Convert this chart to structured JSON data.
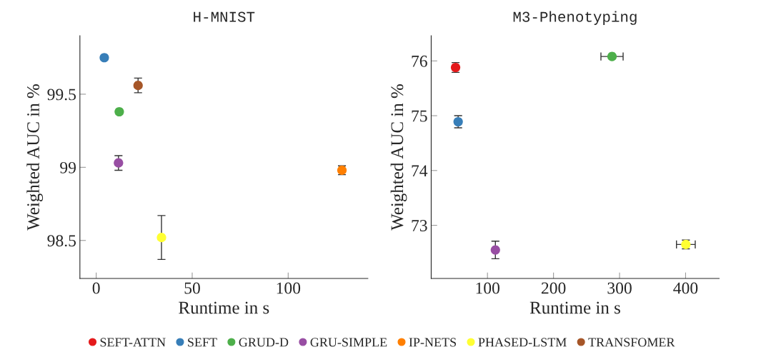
{
  "chart_data": [
    {
      "type": "scatter",
      "title": "H-MNIST",
      "xlabel": "Runtime in s",
      "ylabel": "Weighted AUC in %",
      "xlim": [
        -8.5,
        141.5
      ],
      "xticks": [
        0,
        50,
        100
      ],
      "ylim": [
        98.24,
        99.9
      ],
      "yticks": [
        98.5,
        99,
        99.5
      ],
      "marker": "circle",
      "grid": false,
      "legend": "bottom",
      "series": [
        {
          "name": "SEFT-ATTN",
          "color": "#e41a1c",
          "x": [
            null
          ],
          "values": [
            null
          ]
        },
        {
          "name": "SEFT",
          "color": "#377eb8",
          "x": [
            4.2
          ],
          "values": [
            99.75
          ]
        },
        {
          "name": "GRUD-D",
          "color": "#4daf4a",
          "x": [
            12.0
          ],
          "values": [
            99.38
          ]
        },
        {
          "name": "GRU-SIMPLE",
          "color": "#984ea3",
          "x": [
            11.6
          ],
          "values": [
            99.03
          ],
          "errors": [
            0.05
          ]
        },
        {
          "name": "IP-NETS",
          "color": "#ff7f00",
          "x": [
            128.0
          ],
          "values": [
            98.98
          ],
          "errors": [
            0.03
          ]
        },
        {
          "name": "PHASED-LSTM",
          "color": "#ffff33",
          "x": [
            34.0
          ],
          "values": [
            98.52
          ],
          "errors": [
            0.15
          ]
        },
        {
          "name": "TRANSFOMER",
          "color": "#a65628",
          "x": [
            21.8
          ],
          "values": [
            99.56
          ],
          "errors": [
            0.05
          ]
        }
      ]
    },
    {
      "type": "scatter",
      "title": "M3-Phenotyping",
      "xlabel": "Runtime in s",
      "ylabel": "Weighted AUC in %",
      "xlim": [
        14.8,
        450.8
      ],
      "xticks": [
        100,
        200,
        300,
        400
      ],
      "ylim": [
        72.03,
        76.46
      ],
      "yticks": [
        73,
        74,
        75,
        76
      ],
      "marker": "circle",
      "grid": false,
      "series": [
        {
          "color": "#e41a1c",
          "x": [
            51.7
          ],
          "values": [
            75.88
          ],
          "errors": [
            0.09
          ]
        },
        {
          "color": "#377eb8",
          "x": [
            55.6
          ],
          "values": [
            74.89
          ],
          "errors": [
            0.11
          ]
        },
        {
          "color": "#4daf4a",
          "x": [
            288.6
          ],
          "values": [
            76.08
          ],
          "xerrors": [
            16.8
          ]
        },
        {
          "color": "#984ea3",
          "x": [
            112.0
          ],
          "values": [
            72.55
          ],
          "errors": [
            0.16
          ]
        },
        {
          "color": "#ffff33",
          "x": [
            400.4
          ],
          "values": [
            72.65
          ],
          "errors": [
            0.08
          ],
          "xerrors": [
            14.2
          ]
        }
      ]
    }
  ]
}
